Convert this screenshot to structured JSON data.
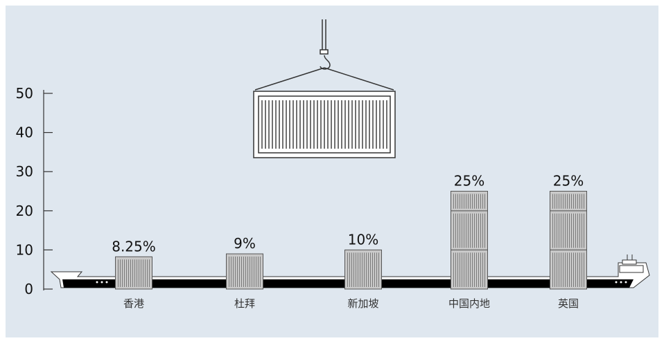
{
  "chart_data": {
    "type": "bar",
    "categories": [
      "香港",
      "杜拜",
      "新加坡",
      "中国内地",
      "英国"
    ],
    "values": [
      8.25,
      9,
      10,
      25,
      25
    ],
    "value_labels": [
      "8.25%",
      "9%",
      "10%",
      "25%",
      "25%"
    ],
    "yticks": [
      "0",
      "10",
      "20",
      "30",
      "40",
      "50"
    ],
    "ylim": [
      0,
      50
    ],
    "title": "",
    "xlabel": "",
    "ylabel": "",
    "colors": {
      "background": "#dfe7ef",
      "container_fill": "#c9c9c9",
      "ship_hull": "#000000",
      "axis": "#333333"
    }
  }
}
